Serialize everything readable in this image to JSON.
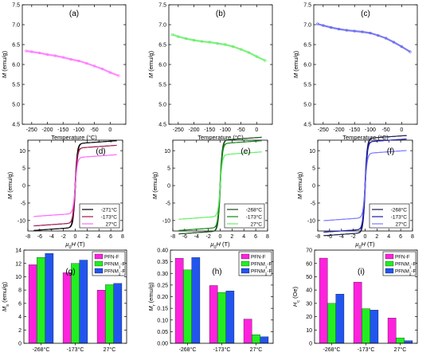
{
  "figure": {
    "panels": [
      "(a)",
      "(b)",
      "(c)",
      "(d)",
      "(e)",
      "(f)",
      "(g)",
      "(h)",
      "(i)"
    ]
  },
  "chart_data": [
    {
      "id": "a",
      "panel_label": "(a)",
      "type": "line",
      "xlabel": "Temperature (°C)",
      "ylabel_var": "M",
      "ylabel_unit": " (emu/g)",
      "xlim": [
        -280,
        50
      ],
      "ylim": [
        4.5,
        7.5
      ],
      "xticks": [
        -250,
        -200,
        -150,
        -100,
        -50,
        0
      ],
      "yticks": [
        4.5,
        5.0,
        5.5,
        6.0,
        6.5,
        7.0,
        7.5
      ],
      "ytick_labels": [
        "4.5",
        "5.0",
        "5.5",
        "6.0",
        "6.5",
        "7.0",
        "7.5"
      ],
      "color": "#ff77ff",
      "series": [
        {
          "x": [
            -268,
            -250,
            -225,
            -200,
            -175,
            -150,
            -125,
            -100,
            -75,
            -50,
            -25,
            0,
            27
          ],
          "y": [
            6.34,
            6.32,
            6.29,
            6.25,
            6.22,
            6.18,
            6.13,
            6.09,
            6.03,
            5.96,
            5.89,
            5.8,
            5.72
          ]
        }
      ]
    },
    {
      "id": "b",
      "panel_label": "(b)",
      "type": "line",
      "xlabel": "Temperature (°C)",
      "ylabel_var": "M",
      "ylabel_unit": " (emu/g)",
      "xlim": [
        -280,
        50
      ],
      "ylim": [
        4.5,
        7.5
      ],
      "xticks": [
        -250,
        -200,
        -150,
        -100,
        -50,
        0
      ],
      "yticks": [
        4.5,
        5.0,
        5.5,
        6.0,
        6.5,
        7.0,
        7.5
      ],
      "ytick_labels": [
        "4.5",
        "5.0",
        "5.5",
        "6.0",
        "6.5",
        "7.0",
        "7.5"
      ],
      "color": "#66ee66",
      "series": [
        {
          "x": [
            -268,
            -250,
            -225,
            -200,
            -175,
            -150,
            -125,
            -100,
            -75,
            -50,
            -25,
            0,
            27
          ],
          "y": [
            6.75,
            6.7,
            6.65,
            6.61,
            6.58,
            6.56,
            6.53,
            6.5,
            6.45,
            6.38,
            6.3,
            6.2,
            6.1
          ]
        }
      ]
    },
    {
      "id": "c",
      "panel_label": "(c)",
      "type": "line",
      "xlabel": "Temperature (°C)",
      "ylabel_var": "M",
      "ylabel_unit": " (emu/g)",
      "xlim": [
        -280,
        50
      ],
      "ylim": [
        4.5,
        7.5
      ],
      "xticks": [
        -250,
        -200,
        -150,
        -100,
        -50,
        0
      ],
      "yticks": [
        4.5,
        5.0,
        5.5,
        6.0,
        6.5,
        7.0,
        7.5
      ],
      "ytick_labels": [
        "4.5",
        "5.0",
        "5.5",
        "6.0",
        "6.5",
        "7.0",
        "7.5"
      ],
      "color": "#6666ee",
      "series": [
        {
          "x": [
            -268,
            -250,
            -225,
            -200,
            -175,
            -150,
            -125,
            -100,
            -75,
            -50,
            -25,
            0,
            27
          ],
          "y": [
            7.02,
            6.98,
            6.93,
            6.89,
            6.86,
            6.84,
            6.82,
            6.79,
            6.73,
            6.66,
            6.56,
            6.45,
            6.32
          ]
        }
      ]
    },
    {
      "id": "d",
      "panel_label": "(d)",
      "type": "line",
      "xlabel_var": "μ",
      "xlabel_sub": "0",
      "xlabel_var2": "H",
      "xlabel_unit": " (T)",
      "ylabel_var": "M",
      "ylabel_unit": " (emu/g)",
      "xlim": [
        -8,
        8
      ],
      "ylim": [
        -13,
        13
      ],
      "xticks": [
        -8,
        -6,
        -4,
        -2,
        0,
        2,
        4,
        6,
        8
      ],
      "yticks": [
        -10,
        -5,
        0,
        5,
        10
      ],
      "legend": [
        "-271°C",
        "-173°C",
        "27°C"
      ],
      "colors": [
        "#000000",
        "#a0164e",
        "#ff66ff"
      ],
      "ms": [
        12.0,
        10.7,
        8.0
      ],
      "hc": [
        0.05,
        0.04,
        0.02
      ]
    },
    {
      "id": "e",
      "panel_label": "(e)",
      "type": "line",
      "xlabel_var": "μ",
      "xlabel_sub": "0",
      "xlabel_var2": "H",
      "xlabel_unit": " (T)",
      "ylabel_var": "M",
      "ylabel_unit": " (emu/g)",
      "xlim": [
        -8,
        8
      ],
      "ylim": [
        -13,
        13
      ],
      "xticks": [
        -8,
        -6,
        -4,
        -2,
        0,
        2,
        4,
        6,
        8
      ],
      "yticks": [
        -10,
        -5,
        0,
        5,
        10
      ],
      "legend": [
        "-268°C",
        "-173°C",
        "27°C"
      ],
      "colors": [
        "#1a4a1a",
        "#118811",
        "#66ee66"
      ],
      "ms": [
        13.0,
        12.0,
        8.8
      ],
      "hc": [
        0.05,
        0.04,
        0.02
      ]
    },
    {
      "id": "f",
      "panel_label": "(f)",
      "type": "line",
      "xlabel_var": "μ",
      "xlabel_sub": "0",
      "xlabel_var2": "H",
      "xlabel_unit": " (T)",
      "ylabel_var": "M",
      "ylabel_unit": " (emu/g)",
      "xlim": [
        -8,
        8
      ],
      "ylim": [
        -13,
        13
      ],
      "xticks": [
        -8,
        -6,
        -4,
        -2,
        0,
        2,
        4,
        6,
        8
      ],
      "yticks": [
        -10,
        -5,
        0,
        5,
        10
      ],
      "legend": [
        "-268°C",
        "-173°C",
        "27°C"
      ],
      "colors": [
        "#1a1a44",
        "#1a1aaa",
        "#7777ff"
      ],
      "ms": [
        13.5,
        12.5,
        9.2
      ],
      "hc": [
        0.05,
        0.04,
        0.02
      ]
    },
    {
      "id": "g",
      "panel_label": "(g)",
      "type": "bar",
      "categories": [
        "-268°C",
        "-173°C",
        "27°C"
      ],
      "ylabel_var": "M",
      "ylabel_sub": "s",
      "ylabel_unit": " (emu/g)",
      "ylim": [
        0,
        14
      ],
      "yticks": [
        0,
        2,
        4,
        6,
        8,
        10,
        12,
        14
      ],
      "ytick_labels": [
        "0",
        "2",
        "4",
        "6",
        "8",
        "10",
        "12",
        "14"
      ],
      "series": [
        {
          "name": "PFN-F",
          "name_main": "PFN-F",
          "name_sub": "",
          "name_tail": "",
          "color": "#ff22dd",
          "values": [
            11.8,
            10.6,
            8.0
          ]
        },
        {
          "name": "PFNM1-F",
          "name_main": "PFNM",
          "name_sub": "1",
          "name_tail": "-F",
          "color": "#22ee22",
          "values": [
            12.9,
            12.0,
            8.8
          ]
        },
        {
          "name": "PFNM2-F",
          "name_main": "PFNM",
          "name_sub": "2",
          "name_tail": "-F",
          "color": "#2255ee",
          "values": [
            13.5,
            12.5,
            9.0
          ]
        }
      ]
    },
    {
      "id": "h",
      "panel_label": "(h)",
      "type": "bar",
      "categories": [
        "-268°C",
        "-173°C",
        "27°C"
      ],
      "ylabel_var": "M",
      "ylabel_sub": "r",
      "ylabel_unit": " (emu/g)",
      "ylim": [
        0,
        0.4
      ],
      "yticks": [
        0,
        0.05,
        0.1,
        0.15,
        0.2,
        0.25,
        0.3,
        0.35,
        0.4
      ],
      "ytick_labels": [
        "0.00",
        "0.05",
        "0.10",
        "0.15",
        "0.20",
        "0.25",
        "0.30",
        "0.35",
        "0.40"
      ],
      "series": [
        {
          "name": "PFN-F",
          "name_main": "PFN-F",
          "name_sub": "",
          "name_tail": "",
          "color": "#ff22dd",
          "values": [
            0.365,
            0.248,
            0.104
          ]
        },
        {
          "name": "PFNM1-F",
          "name_main": "PFNM",
          "name_sub": "1",
          "name_tail": "-F",
          "color": "#22ee22",
          "values": [
            0.315,
            0.218,
            0.037
          ]
        },
        {
          "name": "PFNM2-F",
          "name_main": "PFNM",
          "name_sub": "2",
          "name_tail": "-F",
          "color": "#2255ee",
          "values": [
            0.368,
            0.225,
            0.028
          ]
        }
      ]
    },
    {
      "id": "i",
      "panel_label": "(i)",
      "type": "bar",
      "categories": [
        "-268°C",
        "-173°C",
        "27°C"
      ],
      "ylabel_var": "H",
      "ylabel_sub": "c",
      "ylabel_unit": " (Oe)",
      "ylim": [
        0,
        70
      ],
      "yticks": [
        0,
        10,
        20,
        30,
        40,
        50,
        60,
        70
      ],
      "ytick_labels": [
        "0",
        "10",
        "20",
        "30",
        "40",
        "50",
        "60",
        "70"
      ],
      "series": [
        {
          "name": "PFN-F",
          "name_main": "PFN-F",
          "name_sub": "",
          "name_tail": "",
          "color": "#ff22dd",
          "values": [
            64,
            46,
            19
          ]
        },
        {
          "name": "PFNM1-F",
          "name_main": "PFNM",
          "name_sub": "1",
          "name_tail": "-F",
          "color": "#22ee22",
          "values": [
            30,
            26,
            4
          ]
        },
        {
          "name": "PFNM2-F",
          "name_main": "PFNM",
          "name_sub": "2",
          "name_tail": "-F",
          "color": "#2255ee",
          "values": [
            37,
            25,
            2
          ]
        }
      ]
    }
  ]
}
